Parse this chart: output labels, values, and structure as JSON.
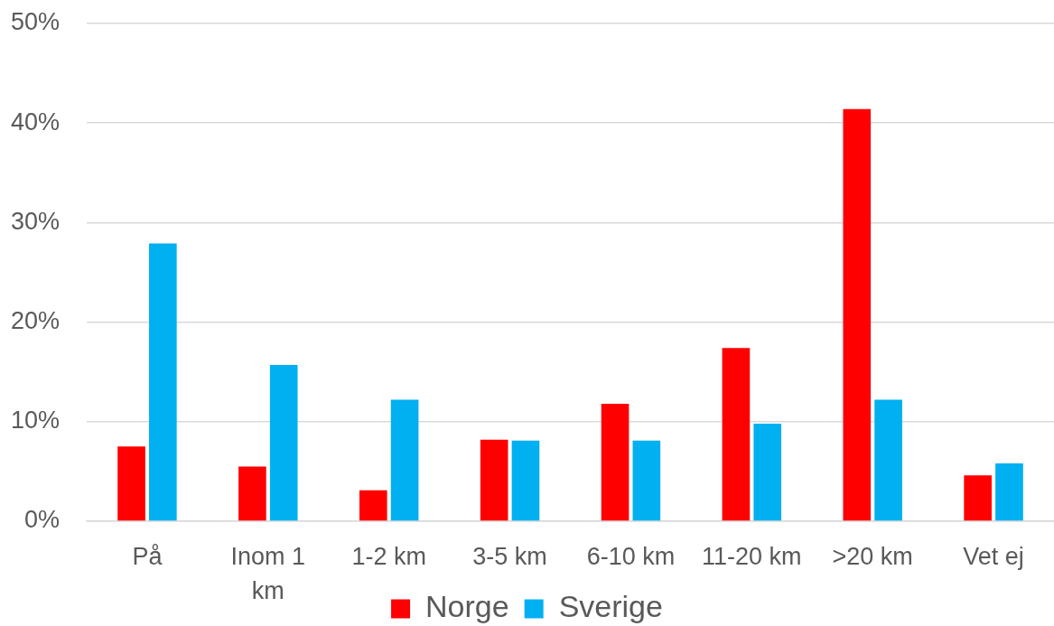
{
  "chart_data": {
    "type": "bar",
    "categories": [
      "På",
      "Inom 1 km",
      "1-2 km",
      "3-5 km",
      "6-10 km",
      "11-20 km",
      ">20 km",
      "Vet ej"
    ],
    "series": [
      {
        "name": "Norge",
        "color": "#ff0000",
        "values": [
          7.5,
          5.5,
          3.1,
          8.2,
          11.8,
          17.4,
          41.4,
          4.6
        ]
      },
      {
        "name": "Sverige",
        "color": "#00b0f0",
        "values": [
          27.9,
          15.7,
          12.2,
          8.1,
          8.1,
          9.8,
          12.2,
          5.8
        ]
      }
    ],
    "ylim": [
      0,
      50
    ],
    "yticks": [
      {
        "value": 0,
        "label": "0%"
      },
      {
        "value": 10,
        "label": "10%"
      },
      {
        "value": 20,
        "label": "20%"
      },
      {
        "value": 30,
        "label": "30%"
      },
      {
        "value": 40,
        "label": "40%"
      },
      {
        "value": 50,
        "label": "50%"
      }
    ],
    "grid": "y",
    "legend": "bottom"
  }
}
